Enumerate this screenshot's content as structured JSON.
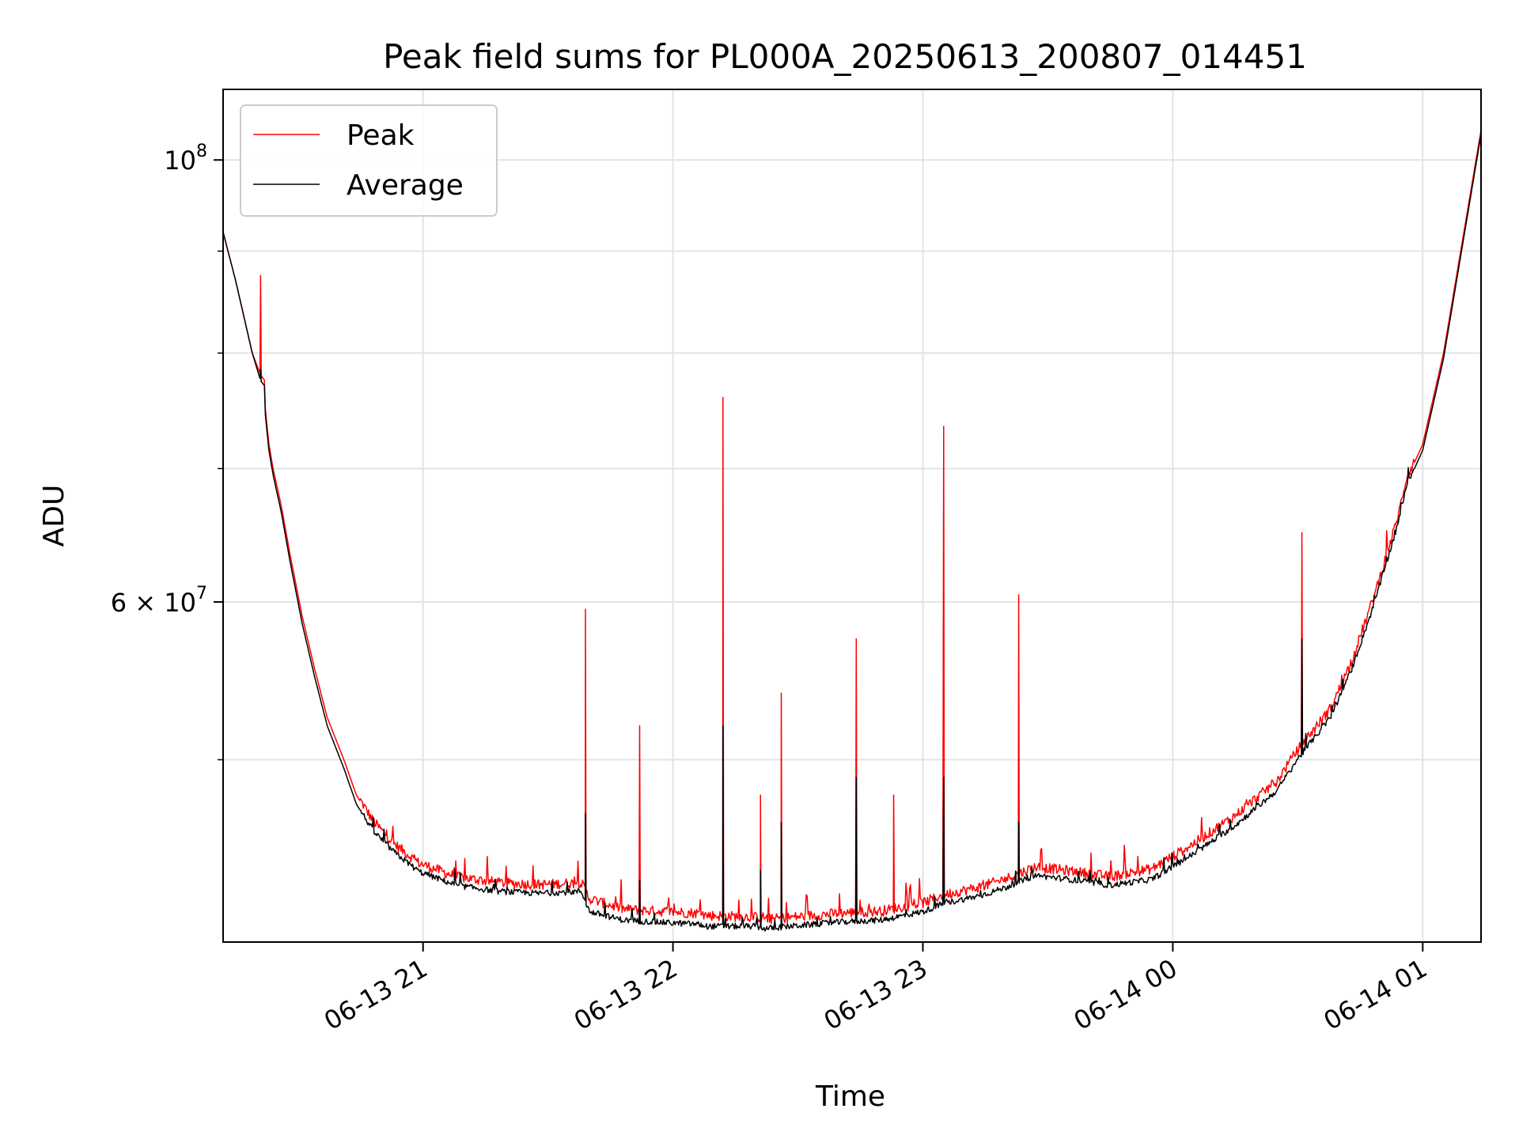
{
  "chart_data": {
    "type": "line",
    "title": "Peak field sums for PL000A_20250613_200807_014451",
    "xlabel": "Time",
    "ylabel": "ADU",
    "yscale": "log",
    "grid": true,
    "legend_placement": "top-left",
    "xlim": [
      "2025-06-13 20:12",
      "2025-06-14 01:14"
    ],
    "ylim": [
      40500000,
      108500000
    ],
    "x_ticks": [
      {
        "value": "2025-06-13 21:00",
        "label": "06-13 21"
      },
      {
        "value": "2025-06-13 22:00",
        "label": "06-13 22"
      },
      {
        "value": "2025-06-13 23:00",
        "label": "06-13 23"
      },
      {
        "value": "2025-06-14 00:00",
        "label": "06-14 00"
      },
      {
        "value": "2025-06-14 01:00",
        "label": "06-14 01"
      }
    ],
    "y_major_ticks": [
      {
        "value": 60000000,
        "label": "6 × 10⁷",
        "mantissa": "6 × 10",
        "exp": "7"
      },
      {
        "value": 100000000,
        "label": "10⁸",
        "mantissa": "10",
        "exp": "8"
      }
    ],
    "y_minor_ticks": [
      50000000,
      70000000,
      80000000,
      90000000
    ],
    "series": [
      {
        "name": "Peak",
        "color": "#ff0000",
        "x": [
          "2025-06-13 20:12",
          "2025-06-13 20:15",
          "2025-06-13 20:19",
          "2025-06-13 20:21",
          "2025-06-13 20:22",
          "2025-06-13 20:22",
          "2025-06-13 20:23",
          "2025-06-13 20:24",
          "2025-06-13 20:26",
          "2025-06-13 20:28",
          "2025-06-13 20:31",
          "2025-06-13 20:34",
          "2025-06-13 20:37",
          "2025-06-13 20:41",
          "2025-06-13 20:44",
          "2025-06-13 20:48",
          "2025-06-13 20:53",
          "2025-06-13 20:59",
          "2025-06-13 21:08",
          "2025-06-13 21:18",
          "2025-06-13 21:28",
          "2025-06-13 21:38",
          "2025-06-13 21:40",
          "2025-06-13 21:48",
          "2025-06-13 21:56",
          "2025-06-13 22:06",
          "2025-06-13 22:08",
          "2025-06-13 22:20",
          "2025-06-13 22:22",
          "2025-06-13 22:23",
          "2025-06-13 22:28",
          "2025-06-13 22:40",
          "2025-06-13 22:50",
          "2025-06-13 23:00",
          "2025-06-13 23:05",
          "2025-06-13 23:14",
          "2025-06-13 23:20",
          "2025-06-13 23:27",
          "2025-06-13 23:35",
          "2025-06-13 23:45",
          "2025-06-13 23:55",
          "2025-06-14 00:05",
          "2025-06-14 00:15",
          "2025-06-14 00:25",
          "2025-06-14 00:30",
          "2025-06-14 00:38",
          "2025-06-14 00:43",
          "2025-06-14 00:48",
          "2025-06-14 00:54",
          "2025-06-14 00:56",
          "2025-06-14 01:00",
          "2025-06-14 01:05",
          "2025-06-14 01:14"
        ],
        "values": [
          92000000,
          87000000,
          80000000,
          78000000,
          77500000,
          75500000,
          72000000,
          70000000,
          67000000,
          63500000,
          59000000,
          55500000,
          52500000,
          50000000,
          48000000,
          46500000,
          45300000,
          44300000,
          43600000,
          43300000,
          43200000,
          43300000,
          42500000,
          42000000,
          41900000,
          41800000,
          41700000,
          41600000,
          41600000,
          41500000,
          41600000,
          41800000,
          41900000,
          42300000,
          42700000,
          43100000,
          43500000,
          44100000,
          43900000,
          43600000,
          44000000,
          45300000,
          46800000,
          48700000,
          50500000,
          53000000,
          56000000,
          60000000,
          66000000,
          69000000,
          72000000,
          80000000,
          103500000
        ],
        "spikes": [
          {
            "x": "2025-06-13 20:21",
            "value": 87500000
          },
          {
            "x": "2025-06-13 21:39",
            "value": 59500000
          },
          {
            "x": "2025-06-13 21:52",
            "value": 52000000
          },
          {
            "x": "2025-06-13 22:12",
            "value": 76000000
          },
          {
            "x": "2025-06-13 22:21",
            "value": 48000000
          },
          {
            "x": "2025-06-13 22:26",
            "value": 54000000
          },
          {
            "x": "2025-06-13 22:44",
            "value": 57500000
          },
          {
            "x": "2025-06-13 22:53",
            "value": 48000000
          },
          {
            "x": "2025-06-13 23:05",
            "value": 73500000
          },
          {
            "x": "2025-06-13 23:23",
            "value": 60500000
          },
          {
            "x": "2025-06-14 00:31",
            "value": 65000000
          }
        ]
      },
      {
        "name": "Average",
        "color": "#000000",
        "x": [
          "2025-06-13 20:12",
          "2025-06-13 20:15",
          "2025-06-13 20:19",
          "2025-06-13 20:21",
          "2025-06-13 20:22",
          "2025-06-13 20:22",
          "2025-06-13 20:23",
          "2025-06-13 20:24",
          "2025-06-13 20:26",
          "2025-06-13 20:28",
          "2025-06-13 20:31",
          "2025-06-13 20:34",
          "2025-06-13 20:37",
          "2025-06-13 20:41",
          "2025-06-13 20:44",
          "2025-06-13 20:48",
          "2025-06-13 20:53",
          "2025-06-13 20:59",
          "2025-06-13 21:08",
          "2025-06-13 21:18",
          "2025-06-13 21:28",
          "2025-06-13 21:38",
          "2025-06-13 21:40",
          "2025-06-13 21:48",
          "2025-06-13 21:56",
          "2025-06-13 22:06",
          "2025-06-13 22:08",
          "2025-06-13 22:20",
          "2025-06-13 22:22",
          "2025-06-13 22:23",
          "2025-06-13 22:28",
          "2025-06-13 22:40",
          "2025-06-13 22:50",
          "2025-06-13 23:00",
          "2025-06-13 23:05",
          "2025-06-13 23:14",
          "2025-06-13 23:20",
          "2025-06-13 23:27",
          "2025-06-13 23:35",
          "2025-06-13 23:45",
          "2025-06-13 23:55",
          "2025-06-14 00:05",
          "2025-06-14 00:15",
          "2025-06-14 00:25",
          "2025-06-14 00:30",
          "2025-06-14 00:38",
          "2025-06-14 00:43",
          "2025-06-14 00:48",
          "2025-06-14 00:54",
          "2025-06-14 00:56",
          "2025-06-14 01:00",
          "2025-06-14 01:05",
          "2025-06-14 01:14"
        ],
        "values": [
          92000000,
          87000000,
          80000000,
          77500000,
          77000000,
          75000000,
          71500000,
          69500000,
          66500000,
          63000000,
          58500000,
          55000000,
          52000000,
          49500000,
          47500000,
          46000000,
          44900000,
          43900000,
          43200000,
          42900000,
          42800000,
          42900000,
          41900000,
          41500000,
          41400000,
          41300000,
          41200000,
          41200000,
          41100000,
          41100000,
          41200000,
          41400000,
          41500000,
          41900000,
          42300000,
          42700000,
          43100000,
          43700000,
          43500000,
          43200000,
          43500000,
          44800000,
          46300000,
          48200000,
          50000000,
          52500000,
          55500000,
          59500000,
          65500000,
          68500000,
          71500000,
          79500000,
          103000000
        ],
        "spikes": [
          {
            "x": "2025-06-13 20:21",
            "value": 78500000
          },
          {
            "x": "2025-06-13 21:39",
            "value": 47000000
          },
          {
            "x": "2025-06-13 21:52",
            "value": 43500000
          },
          {
            "x": "2025-06-13 22:12",
            "value": 52000000
          },
          {
            "x": "2025-06-13 22:21",
            "value": 44000000
          },
          {
            "x": "2025-06-13 22:26",
            "value": 46500000
          },
          {
            "x": "2025-06-13 22:44",
            "value": 49000000
          },
          {
            "x": "2025-06-13 23:05",
            "value": 49000000
          },
          {
            "x": "2025-06-13 23:23",
            "value": 46500000
          },
          {
            "x": "2025-06-14 00:31",
            "value": 57500000
          }
        ]
      }
    ]
  }
}
